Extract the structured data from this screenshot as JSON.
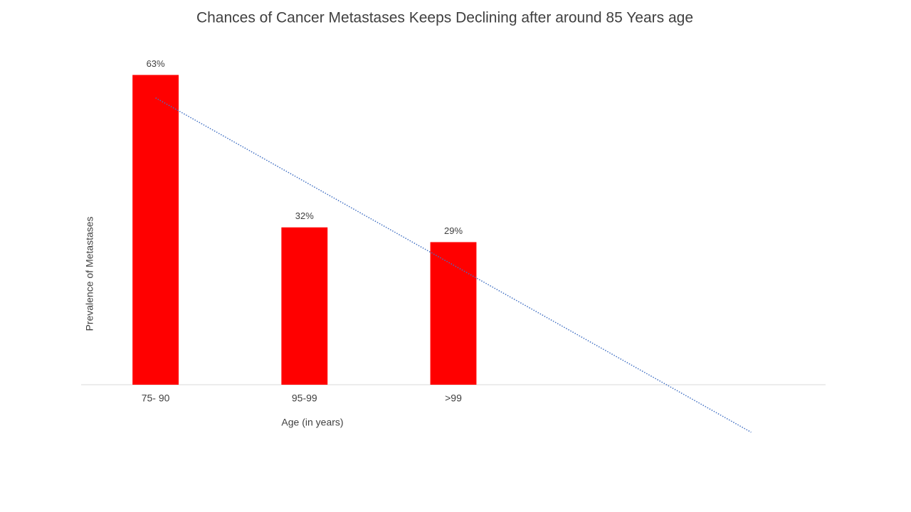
{
  "chart_data": {
    "type": "bar",
    "title": "Chances of Cancer Metastases Keeps Declining after around 85 Years age",
    "x_label": "Age (in years)",
    "y_label": "Prevalence of Metastases",
    "categories": [
      "75- 90",
      "95-99",
      ">99",
      null,
      null
    ],
    "values": [
      63,
      32,
      29,
      null,
      null
    ],
    "value_labels": [
      "63%",
      "32%",
      "29%",
      null,
      null
    ],
    "color": "#ff0000",
    "ylim": [
      0,
      70
    ],
    "trendline": {
      "type": "linear",
      "color": "#4472c4"
    }
  }
}
